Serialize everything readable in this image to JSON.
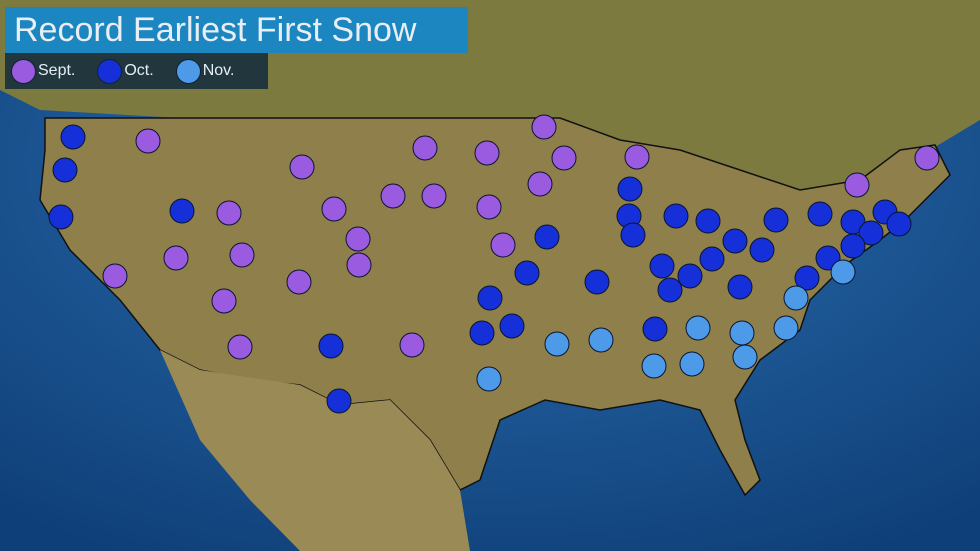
{
  "title": "Record Earliest First Snow",
  "legend": [
    {
      "label": "Sept.",
      "color": "#9a5be0"
    },
    {
      "label": "Oct.",
      "color": "#1530d8"
    },
    {
      "label": "Nov.",
      "color": "#4c9ae8"
    }
  ],
  "colors": {
    "ocean": "#1d5a9a",
    "land": "#8a7a45",
    "canada": "#7b7a3e",
    "border": "#111111"
  },
  "stations": [
    "Sept.",
    "Sept.",
    "Sept.",
    "Sept.",
    "Sept.",
    "Sept.",
    "Sept.",
    "Sept.",
    "Sept.",
    "Sept.",
    "Sept.",
    "Sept.",
    "Sept.",
    "Sept.",
    "Sept.",
    "Sept.",
    "Sept.",
    "Sept.",
    "Sept.",
    "Sept.",
    "Sept.",
    "Sept.",
    "Sept.",
    "Sept.",
    "Sept.",
    "Oct.",
    "Oct.",
    "Oct.",
    "Oct.",
    "Oct.",
    "Oct.",
    "Oct.",
    "Oct.",
    "Oct.",
    "Oct.",
    "Oct.",
    "Oct.",
    "Oct.",
    "Oct.",
    "Oct.",
    "Oct.",
    "Oct.",
    "Oct.",
    "Oct.",
    "Oct.",
    "Oct.",
    "Oct.",
    "Oct.",
    "Oct.",
    "Oct.",
    "Oct.",
    "Oct.",
    "Oct.",
    "Oct.",
    "Oct.",
    "Oct.",
    "Oct.",
    "Oct.",
    "Oct.",
    "Nov.",
    "Nov.",
    "Nov.",
    "Nov.",
    "Nov.",
    "Nov.",
    "Nov.",
    "Nov.",
    "Nov.",
    "Nov.",
    "Nov."
  ]
}
